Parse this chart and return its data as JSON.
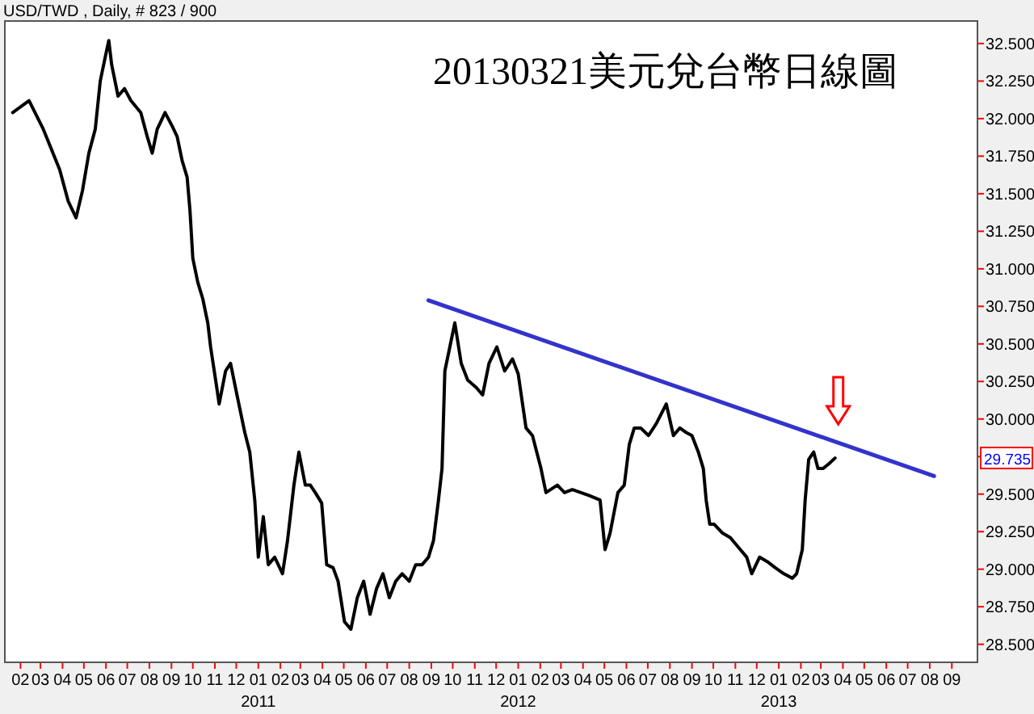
{
  "chart_data": {
    "type": "line",
    "title": "20130321美元兌台幣日線圖",
    "subtitle": "USD/TWD , Daily, # 823 / 900",
    "xlim": [
      "2010-01-10",
      "2013-10-07"
    ],
    "ylim": [
      28.38,
      32.65
    ],
    "yticks": [
      {
        "value": 28.5,
        "label": "28.500"
      },
      {
        "value": 28.75,
        "label": "28.750"
      },
      {
        "value": 29,
        "label": "29.000"
      },
      {
        "value": 29.25,
        "label": "29.250"
      },
      {
        "value": 29.5,
        "label": "29.500"
      },
      {
        "value": 29.75,
        "label": null
      },
      {
        "value": 30,
        "label": "30.000"
      },
      {
        "value": 30.25,
        "label": "30.250"
      },
      {
        "value": 30.5,
        "label": "30.500"
      },
      {
        "value": 30.75,
        "label": "30.750"
      },
      {
        "value": 31,
        "label": "31.000"
      },
      {
        "value": 31.25,
        "label": "31.250"
      },
      {
        "value": 31.5,
        "label": "31.500"
      },
      {
        "value": 31.75,
        "label": "31.750"
      },
      {
        "value": 32,
        "label": "32.000"
      },
      {
        "value": 32.25,
        "label": "32.250"
      },
      {
        "value": 32.5,
        "label": "32.500"
      }
    ],
    "xticks": [
      {
        "value": "2010-02-01",
        "label": "02"
      },
      {
        "value": "2010-03-01",
        "label": "03"
      },
      {
        "value": "2010-04-01",
        "label": "04"
      },
      {
        "value": "2010-05-01",
        "label": "05"
      },
      {
        "value": "2010-06-01",
        "label": "06"
      },
      {
        "value": "2010-07-01",
        "label": "07"
      },
      {
        "value": "2010-08-01",
        "label": "08"
      },
      {
        "value": "2010-09-01",
        "label": "09"
      },
      {
        "value": "2010-10-01",
        "label": "10"
      },
      {
        "value": "2010-11-01",
        "label": "11"
      },
      {
        "value": "2010-12-01",
        "label": "12"
      },
      {
        "value": "2011-01-01",
        "label": "01\n2011"
      },
      {
        "value": "2011-02-01",
        "label": "02"
      },
      {
        "value": "2011-03-01",
        "label": "03"
      },
      {
        "value": "2011-04-01",
        "label": "04"
      },
      {
        "value": "2011-05-01",
        "label": "05"
      },
      {
        "value": "2011-06-01",
        "label": "06"
      },
      {
        "value": "2011-07-01",
        "label": "07"
      },
      {
        "value": "2011-08-01",
        "label": "08"
      },
      {
        "value": "2011-09-01",
        "label": "09"
      },
      {
        "value": "2011-10-01",
        "label": "10"
      },
      {
        "value": "2011-11-01",
        "label": "11"
      },
      {
        "value": "2011-12-01",
        "label": "12"
      },
      {
        "value": "2012-01-01",
        "label": "01\n2012"
      },
      {
        "value": "2012-02-01",
        "label": "02"
      },
      {
        "value": "2012-03-01",
        "label": "03"
      },
      {
        "value": "2012-04-01",
        "label": "04"
      },
      {
        "value": "2012-05-01",
        "label": "05"
      },
      {
        "value": "2012-06-01",
        "label": "06"
      },
      {
        "value": "2012-07-01",
        "label": "07"
      },
      {
        "value": "2012-08-01",
        "label": "08"
      },
      {
        "value": "2012-09-01",
        "label": "09"
      },
      {
        "value": "2012-10-01",
        "label": "10"
      },
      {
        "value": "2012-11-01",
        "label": "11"
      },
      {
        "value": "2012-12-01",
        "label": "12"
      },
      {
        "value": "2013-01-01",
        "label": "01\n2013"
      },
      {
        "value": "2013-02-01",
        "label": "02"
      },
      {
        "value": "2013-03-01",
        "label": "03"
      },
      {
        "value": "2013-04-01",
        "label": "04"
      },
      {
        "value": "2013-05-01",
        "label": "05"
      },
      {
        "value": "2013-06-01",
        "label": "06"
      },
      {
        "value": "2013-07-01",
        "label": "07"
      },
      {
        "value": "2013-08-01",
        "label": "08"
      },
      {
        "value": "2013-09-01",
        "label": "09"
      }
    ],
    "series": [
      {
        "color": "#000000",
        "x": [
          "2010-01-21",
          "2010-02-13",
          "2010-03-05",
          "2010-03-28",
          "2010-04-09",
          "2010-04-20",
          "2010-04-29",
          "2010-05-08",
          "2010-05-17",
          "2010-05-24",
          "2010-05-31",
          "2010-06-05",
          "2010-06-09",
          "2010-06-18",
          "2010-06-27",
          "2010-07-06",
          "2010-07-20",
          "2010-07-29",
          "2010-08-05",
          "2010-08-12",
          "2010-08-23",
          "2010-09-02",
          "2010-09-09",
          "2010-09-16",
          "2010-09-23",
          "2010-09-27",
          "2010-10-01",
          "2010-10-08",
          "2010-10-15",
          "2010-10-22",
          "2010-10-26",
          "2010-11-02",
          "2010-11-07",
          "2010-11-16",
          "2010-11-23",
          "2010-12-02",
          "2010-12-13",
          "2010-12-20",
          "2010-12-27",
          "2011-01-01",
          "2011-01-08",
          "2011-01-15",
          "2011-01-24",
          "2011-02-04",
          "2011-02-11",
          "2011-02-20",
          "2011-02-27",
          "2011-03-01",
          "2011-03-08",
          "2011-03-15",
          "2011-03-22",
          "2011-03-31",
          "2011-04-07",
          "2011-04-16",
          "2011-04-23",
          "2011-05-02",
          "2011-05-11",
          "2011-05-20",
          "2011-05-29",
          "2011-06-07",
          "2011-06-16",
          "2011-06-25",
          "2011-07-04",
          "2011-07-13",
          "2011-07-22",
          "2011-08-01",
          "2011-08-10",
          "2011-08-19",
          "2011-08-28",
          "2011-09-04",
          "2011-09-11",
          "2011-09-16",
          "2011-09-20",
          "2011-09-27",
          "2011-10-04",
          "2011-10-13",
          "2011-10-22",
          "2011-11-03",
          "2011-11-12",
          "2011-11-21",
          "2011-12-02",
          "2011-12-13",
          "2011-12-24",
          "2012-01-01",
          "2012-01-12",
          "2012-01-21",
          "2012-02-02",
          "2012-02-09",
          "2012-02-25",
          "2012-03-06",
          "2012-03-17",
          "2012-03-29",
          "2012-04-10",
          "2012-04-25",
          "2012-05-02",
          "2012-05-09",
          "2012-05-20",
          "2012-05-29",
          "2012-06-05",
          "2012-06-12",
          "2012-06-21",
          "2012-07-02",
          "2012-07-13",
          "2012-07-27",
          "2012-08-06",
          "2012-08-15",
          "2012-08-24",
          "2012-09-01",
          "2012-09-10",
          "2012-09-17",
          "2012-09-21",
          "2012-09-26",
          "2012-10-02",
          "2012-10-14",
          "2012-10-25",
          "2012-11-08",
          "2012-11-17",
          "2012-11-24",
          "2012-12-05",
          "2012-12-16",
          "2012-12-27",
          "2013-01-08",
          "2013-01-20",
          "2013-01-26",
          "2013-02-03",
          "2013-02-07",
          "2013-02-12",
          "2013-02-19",
          "2013-02-25",
          "2013-03-04",
          "2013-03-12",
          "2013-03-21"
        ],
        "values": [
          32.04,
          32.12,
          31.93,
          31.66,
          31.45,
          31.34,
          31.52,
          31.77,
          31.93,
          32.25,
          32.41,
          32.52,
          32.36,
          32.15,
          32.2,
          32.12,
          32.04,
          31.88,
          31.77,
          31.93,
          32.04,
          31.95,
          31.88,
          31.72,
          31.61,
          31.39,
          31.07,
          30.91,
          30.8,
          30.64,
          30.48,
          30.26,
          30.1,
          30.32,
          30.37,
          30.16,
          29.91,
          29.78,
          29.46,
          29.08,
          29.35,
          29.03,
          29.08,
          28.97,
          29.19,
          29.56,
          29.78,
          29.73,
          29.56,
          29.56,
          29.51,
          29.44,
          29.03,
          29.01,
          28.92,
          28.65,
          28.6,
          28.81,
          28.92,
          28.7,
          28.87,
          28.97,
          28.81,
          28.92,
          28.97,
          28.92,
          29.03,
          29.03,
          29.08,
          29.19,
          29.46,
          29.67,
          30.32,
          30.48,
          30.64,
          30.37,
          30.26,
          30.21,
          30.16,
          30.37,
          30.48,
          30.32,
          30.4,
          30.3,
          29.94,
          29.89,
          29.67,
          29.51,
          29.56,
          29.51,
          29.53,
          29.51,
          29.49,
          29.46,
          29.13,
          29.24,
          29.51,
          29.56,
          29.83,
          29.94,
          29.94,
          29.89,
          29.97,
          30.1,
          29.89,
          29.94,
          29.91,
          29.89,
          29.78,
          29.67,
          29.46,
          29.3,
          29.3,
          29.24,
          29.21,
          29.13,
          29.08,
          28.97,
          29.08,
          29.05,
          29.01,
          28.97,
          28.94,
          28.97,
          29.13,
          29.46,
          29.73,
          29.78,
          29.67,
          29.67,
          29.7,
          29.74
        ]
      },
      {
        "type": "line",
        "color": "#3333cc",
        "x": [
          "2011-08-28",
          "2013-08-07"
        ],
        "values": [
          30.79,
          29.62
        ]
      }
    ],
    "annotations": [
      {
        "text": "29.735",
        "y": 29.735
      }
    ]
  }
}
